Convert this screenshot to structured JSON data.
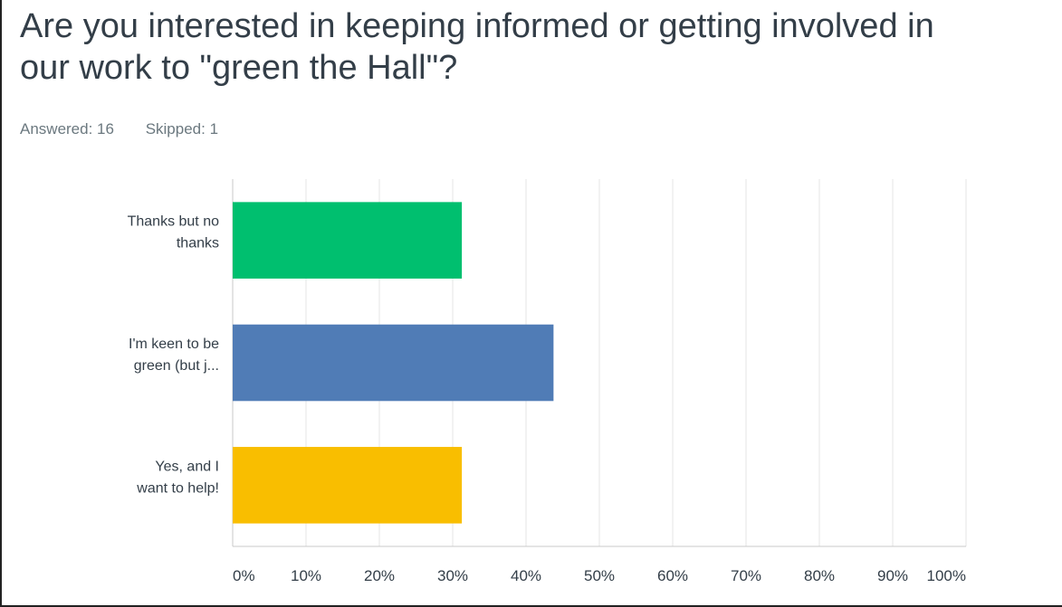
{
  "question": {
    "title": "Are you interested in keeping informed or getting involved in\nour work to \"green the Hall\"?",
    "answered": "Answered: 16",
    "skipped": "Skipped: 1"
  },
  "colors": {
    "grid": "#e6e6e6",
    "axis": "#c8c8c8"
  },
  "chart_data": {
    "type": "bar",
    "orientation": "horizontal",
    "categories": [
      [
        "Thanks but no",
        "thanks"
      ],
      [
        "I'm keen to be",
        "green (but j..."
      ],
      [
        "Yes, and I",
        "want to help!"
      ]
    ],
    "values": [
      31.25,
      43.75,
      31.25
    ],
    "colors": [
      "#00bf6f",
      "#507cb6",
      "#f9be00"
    ],
    "xlim": [
      0,
      100
    ],
    "ticks": [
      "0%",
      "10%",
      "20%",
      "30%",
      "40%",
      "50%",
      "60%",
      "70%",
      "80%",
      "90%",
      "100%"
    ],
    "grid": true
  }
}
